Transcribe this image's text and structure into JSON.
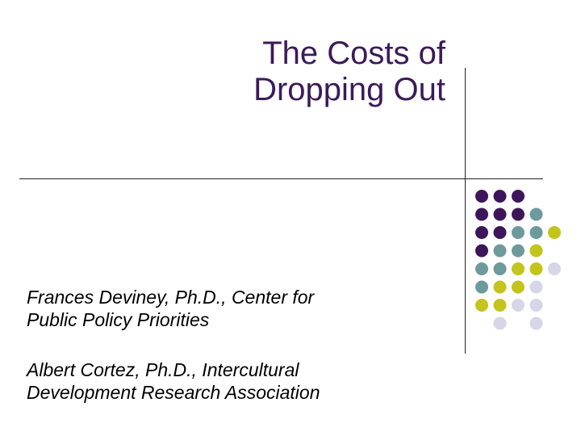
{
  "slide": {
    "title_line1": "The Costs of",
    "title_line2": "Dropping Out",
    "authors": [
      {
        "line1": "Frances Deviney, Ph.D., Center for",
        "line2": "Public Policy Priorities"
      },
      {
        "line1": "Albert Cortez, Ph.D., Intercultural",
        "line2": "Development Research Association"
      }
    ]
  },
  "colors": {
    "title": "#3b1a5a",
    "dot_purple": "#3d165a",
    "dot_teal": "#6e9a9c",
    "dot_olive": "#c3c41c",
    "dot_lavender": "#d7d6e8"
  },
  "dot_grid": [
    [
      "purple",
      "purple",
      "purple",
      "",
      "",
      ""
    ],
    [
      "purple",
      "purple",
      "purple",
      "teal",
      "",
      ""
    ],
    [
      "purple",
      "purple",
      "teal",
      "teal",
      "olive",
      ""
    ],
    [
      "purple",
      "teal",
      "teal",
      "olive",
      "",
      ""
    ],
    [
      "teal",
      "teal",
      "olive",
      "olive",
      "lavender",
      ""
    ],
    [
      "teal",
      "olive",
      "olive",
      "lavender",
      "",
      ""
    ],
    [
      "olive",
      "olive",
      "lavender",
      "lavender",
      "",
      ""
    ],
    [
      "",
      "lavender",
      "",
      "lavender",
      "",
      ""
    ]
  ]
}
